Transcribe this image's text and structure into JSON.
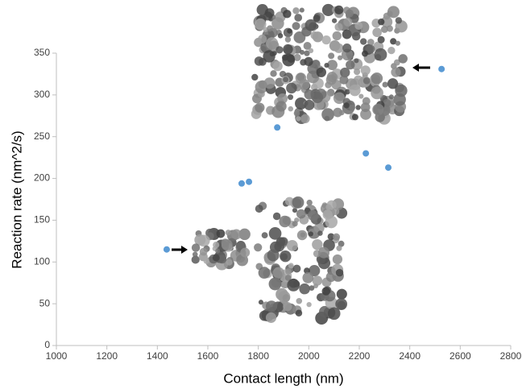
{
  "chart_data": {
    "type": "scatter",
    "x_label": "Contact length (nm)",
    "y_label": "Reaction rate (nm^2/s)",
    "x": [
      1437,
      1734,
      1763,
      1875,
      2226,
      2315,
      2526
    ],
    "values": [
      115,
      194,
      196,
      261,
      230,
      213,
      331
    ],
    "color": "#5b9bd5",
    "xlim": [
      1000,
      2800
    ],
    "xticks": [
      1000,
      1200,
      1400,
      1600,
      1800,
      2000,
      2200,
      2400,
      2600,
      2800
    ],
    "ylim": [
      0,
      350
    ],
    "yticks": [
      0,
      50,
      100,
      150,
      200,
      250,
      300,
      350
    ],
    "grid": false
  }
}
